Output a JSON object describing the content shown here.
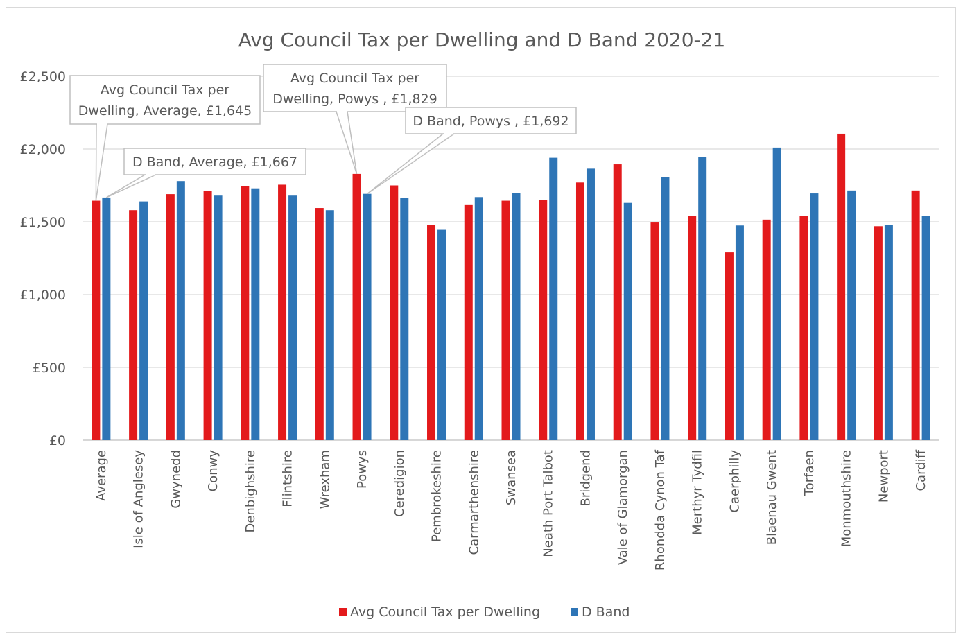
{
  "chart_data": {
    "type": "bar",
    "title": "Avg Council Tax per Dwelling and D Band 2020-21",
    "xlabel": "",
    "ylabel": "",
    "ylim": [
      0,
      2500
    ],
    "yticks": [
      0,
      500,
      1000,
      1500,
      2000,
      2500
    ],
    "ytick_labels": [
      "£0",
      "£500",
      "£1,000",
      "£1,500",
      "£2,000",
      "£2,500"
    ],
    "grid": true,
    "legend_position": "bottom",
    "categories": [
      "Average",
      "Isle of Anglesey",
      "Gwynedd",
      "Conwy",
      "Denbighshire",
      "Flintshire",
      "Wrexham",
      "Powys",
      "Ceredigion",
      "Pembrokeshire",
      "Carmarthenshire",
      "Swansea",
      "Neath Port Talbot",
      "Bridgend",
      "Vale of Glamorgan",
      "Rhondda Cynon Taf",
      "Merthyr Tydfil",
      "Caerphilly",
      "Blaenau Gwent",
      "Torfaen",
      "Monmouthshire",
      "Newport",
      "Cardiff"
    ],
    "series": [
      {
        "name": "Avg Council Tax per Dwelling",
        "color": "#e31a1c",
        "values": [
          1645,
          1580,
          1690,
          1710,
          1745,
          1755,
          1595,
          1829,
          1750,
          1480,
          1615,
          1645,
          1650,
          1770,
          1895,
          1495,
          1540,
          1290,
          1515,
          1540,
          2105,
          1470,
          1715
        ]
      },
      {
        "name": "D Band",
        "color": "#2e75b6",
        "values": [
          1667,
          1640,
          1780,
          1680,
          1730,
          1680,
          1580,
          1692,
          1665,
          1445,
          1670,
          1700,
          1940,
          1865,
          1630,
          1805,
          1945,
          1475,
          2010,
          1695,
          1715,
          1480,
          1540
        ]
      }
    ],
    "annotations": [
      {
        "text_lines": [
          "Avg Council Tax per",
          "Dwelling, Average, £1,645"
        ]
      },
      {
        "text_lines": [
          "D Band, Average, £1,667"
        ]
      },
      {
        "text_lines": [
          "Avg Council Tax per",
          "Dwelling, Powys , £1,829"
        ]
      },
      {
        "text_lines": [
          "D Band, Powys , £1,692"
        ]
      }
    ]
  }
}
